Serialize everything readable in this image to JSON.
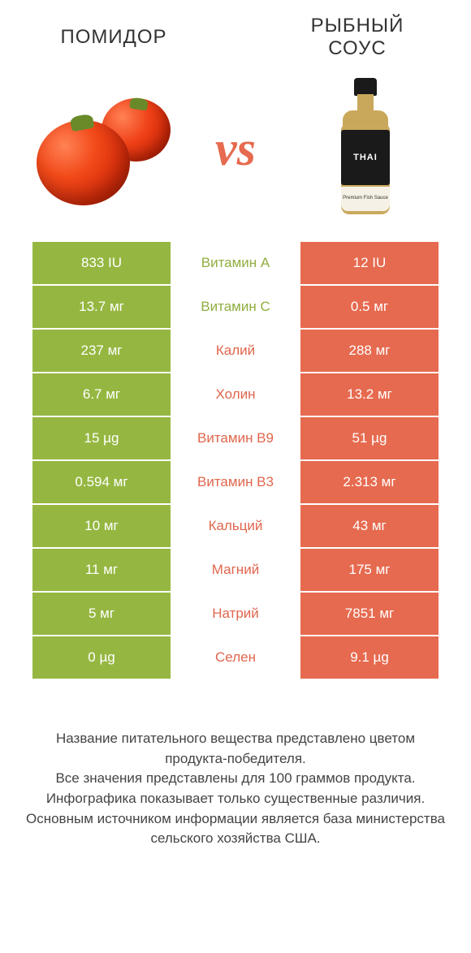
{
  "colors": {
    "green": "#95b741",
    "orange": "#e66a4f",
    "mid_text_green": "#8fae3e",
    "mid_text_orange": "#e0664d"
  },
  "header": {
    "left": "ПОМИДОР",
    "right_line1": "РЫБНЫЙ",
    "right_line2": "СОУС"
  },
  "vs": "vs",
  "bottle_label": "THAI",
  "bottle_sublabel": "Premium Fish Sauce",
  "rows": [
    {
      "left": "833 IU",
      "mid": "Витамин A",
      "right": "12 IU",
      "winner": "left"
    },
    {
      "left": "13.7 мг",
      "mid": "Витамин C",
      "right": "0.5 мг",
      "winner": "left"
    },
    {
      "left": "237 мг",
      "mid": "Калий",
      "right": "288 мг",
      "winner": "right"
    },
    {
      "left": "6.7 мг",
      "mid": "Холин",
      "right": "13.2 мг",
      "winner": "right"
    },
    {
      "left": "15 µg",
      "mid": "Витамин B9",
      "right": "51 µg",
      "winner": "right"
    },
    {
      "left": "0.594 мг",
      "mid": "Витамин B3",
      "right": "2.313 мг",
      "winner": "right"
    },
    {
      "left": "10 мг",
      "mid": "Кальций",
      "right": "43 мг",
      "winner": "right"
    },
    {
      "left": "11 мг",
      "mid": "Магний",
      "right": "175 мг",
      "winner": "right"
    },
    {
      "left": "5 мг",
      "mid": "Натрий",
      "right": "7851 мг",
      "winner": "right"
    },
    {
      "left": "0 µg",
      "mid": "Селен",
      "right": "9.1 µg",
      "winner": "right"
    }
  ],
  "footer": {
    "l1": "Название питательного вещества представлено цветом продукта-победителя.",
    "l2": "Все значения представлены для 100 граммов продукта.",
    "l3": "Инфографика показывает только существенные различия.",
    "l4": "Основным источником информации является база министерства сельского хозяйства США."
  }
}
